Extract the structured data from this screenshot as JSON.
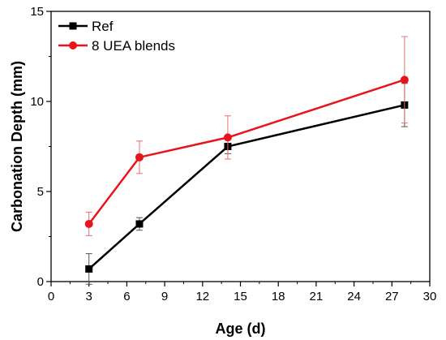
{
  "chart_data": {
    "type": "line",
    "xlabel": "Age (d)",
    "ylabel": "Carbonation Depth (mm)",
    "xlim": [
      0,
      30
    ],
    "ylim": [
      0,
      15
    ],
    "xticks": [
      0,
      3,
      6,
      9,
      12,
      15,
      18,
      21,
      24,
      27,
      30
    ],
    "yticks": [
      0,
      5,
      10,
      15
    ],
    "grid": false,
    "legend_position": "top-left",
    "series": [
      {
        "name": "Ref",
        "color": "#000000",
        "marker": "square",
        "x": [
          3,
          7,
          14,
          28
        ],
        "y": [
          0.7,
          3.2,
          7.5,
          9.8
        ],
        "error": [
          0.85,
          0.35,
          0.4,
          1.2
        ]
      },
      {
        "name": "8 UEA blends",
        "color": "#e8141b",
        "marker": "circle",
        "x": [
          3,
          7,
          14,
          28
        ],
        "y": [
          3.2,
          6.9,
          8.0,
          11.2
        ],
        "error": [
          0.65,
          0.9,
          1.2,
          2.4
        ]
      }
    ]
  }
}
